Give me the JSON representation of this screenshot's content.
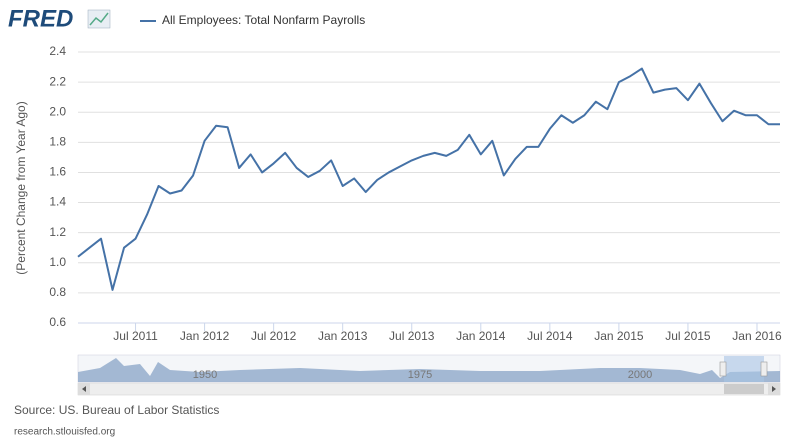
{
  "logo": "FRED",
  "chart_data": {
    "type": "line",
    "y_label": "(Percent Change from Year Ago)",
    "x": [
      "2011-02",
      "2011-03",
      "2011-04",
      "2011-05",
      "2011-06",
      "2011-07",
      "2011-08",
      "2011-09",
      "2011-10",
      "2011-11",
      "2011-12",
      "2012-01",
      "2012-02",
      "2012-03",
      "2012-04",
      "2012-05",
      "2012-06",
      "2012-07",
      "2012-08",
      "2012-09",
      "2012-10",
      "2012-11",
      "2012-12",
      "2013-01",
      "2013-02",
      "2013-03",
      "2013-04",
      "2013-05",
      "2013-06",
      "2013-07",
      "2013-08",
      "2013-09",
      "2013-10",
      "2013-11",
      "2013-12",
      "2014-01",
      "2014-02",
      "2014-03",
      "2014-04",
      "2014-05",
      "2014-06",
      "2014-07",
      "2014-08",
      "2014-09",
      "2014-10",
      "2014-11",
      "2014-12",
      "2015-01",
      "2015-02",
      "2015-03",
      "2015-04",
      "2015-05",
      "2015-06",
      "2015-07",
      "2015-08",
      "2015-09",
      "2015-10",
      "2015-11",
      "2015-12",
      "2016-01",
      "2016-02",
      "2016-03"
    ],
    "series": [
      {
        "name": "All Employees: Total Nonfarm Payrolls",
        "color": "#4572a7",
        "values": [
          1.04,
          1.1,
          1.16,
          0.82,
          1.1,
          1.16,
          1.32,
          1.51,
          1.46,
          1.48,
          1.58,
          1.81,
          1.91,
          1.9,
          1.63,
          1.72,
          1.6,
          1.66,
          1.73,
          1.63,
          1.57,
          1.61,
          1.68,
          1.51,
          1.56,
          1.47,
          1.55,
          1.6,
          1.64,
          1.68,
          1.71,
          1.73,
          1.71,
          1.75,
          1.85,
          1.72,
          1.81,
          1.58,
          1.69,
          1.77,
          1.77,
          1.89,
          1.98,
          1.93,
          1.98,
          2.07,
          2.02,
          2.2,
          2.24,
          2.29,
          2.13,
          2.15,
          2.16,
          2.08,
          2.19,
          2.06,
          1.94,
          2.01,
          1.98,
          1.98,
          1.92,
          1.92
        ]
      }
    ],
    "xlim": [
      "2011-02",
      "2016-03"
    ],
    "xticks": [
      {
        "value": "2011-07",
        "label": "Jul 2011"
      },
      {
        "value": "2012-01",
        "label": "Jan 2012"
      },
      {
        "value": "2012-07",
        "label": "Jul 2012"
      },
      {
        "value": "2013-01",
        "label": "Jan 2013"
      },
      {
        "value": "2013-07",
        "label": "Jul 2013"
      },
      {
        "value": "2014-01",
        "label": "Jan 2014"
      },
      {
        "value": "2014-07",
        "label": "Jul 2014"
      },
      {
        "value": "2015-01",
        "label": "Jan 2015"
      },
      {
        "value": "2015-07",
        "label": "Jul 2015"
      },
      {
        "value": "2016-01",
        "label": "Jan 2016"
      }
    ],
    "ylim": [
      0.6,
      2.4
    ],
    "yticks": [
      0.6,
      0.8,
      {
        "value": 1.0,
        "label": "1.0"
      },
      1.2,
      1.4,
      1.6,
      1.8,
      {
        "value": 2.0,
        "label": "2.0"
      },
      2.2,
      2.4
    ],
    "grid": true,
    "navigator_labels": [
      "1950",
      "1975",
      "2000"
    ],
    "source": "Source: US. Bureau of Labor Statistics",
    "url": "research.stlouisfed.org"
  }
}
